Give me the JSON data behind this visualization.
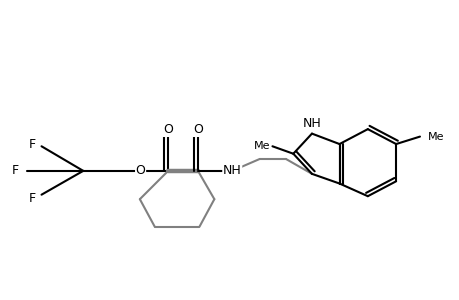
{
  "background_color": "#ffffff",
  "line_color": "#000000",
  "gray_color": "#808080",
  "line_width": 1.5,
  "fig_width": 4.6,
  "fig_height": 3.0,
  "dpi": 100,
  "xlim": [
    0.2,
    6.3
  ],
  "ylim": [
    0.7,
    3.3
  ]
}
